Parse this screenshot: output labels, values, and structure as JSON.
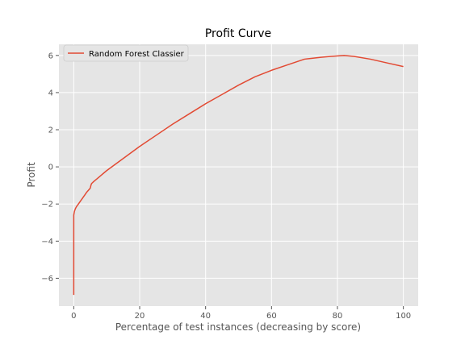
{
  "chart_data": {
    "type": "line",
    "title": "Profit Curve",
    "xlabel": "Percentage of test instances (decreasing by score)",
    "ylabel": "Profit",
    "xlim": [
      -4.5,
      104.5
    ],
    "ylim": [
      -7.5,
      6.6
    ],
    "xticks": [
      0,
      20,
      40,
      60,
      80,
      100
    ],
    "yticks": [
      -6,
      -4,
      -2,
      0,
      2,
      4,
      6
    ],
    "xtick_labels": [
      "0",
      "20",
      "40",
      "60",
      "80",
      "100"
    ],
    "ytick_labels": [
      "−6",
      "−4",
      "−2",
      "0",
      "2",
      "4",
      "6"
    ],
    "grid": true,
    "legend_position": "top-left",
    "background_color": "#e5e5e5",
    "series": [
      {
        "name": "Random Forest Classier",
        "color": "#e24a33",
        "x": [
          0,
          0,
          0.1,
          0.2,
          0.3,
          0.5,
          0.8,
          1.2,
          2,
          3,
          4,
          5,
          5.2,
          5.4,
          6,
          8,
          10,
          15,
          20,
          25,
          30,
          35,
          40,
          45,
          50,
          55,
          60,
          65,
          70,
          75,
          78,
          82,
          85,
          90,
          95,
          100
        ],
        "y": [
          -6.9,
          -2.6,
          -2.5,
          -2.4,
          -2.35,
          -2.25,
          -2.15,
          -2.05,
          -1.85,
          -1.6,
          -1.35,
          -1.15,
          -1.0,
          -0.9,
          -0.8,
          -0.5,
          -0.2,
          0.45,
          1.1,
          1.7,
          2.3,
          2.85,
          3.4,
          3.9,
          4.4,
          4.85,
          5.2,
          5.5,
          5.8,
          5.9,
          5.95,
          6.0,
          5.95,
          5.8,
          5.6,
          5.4
        ]
      }
    ]
  }
}
